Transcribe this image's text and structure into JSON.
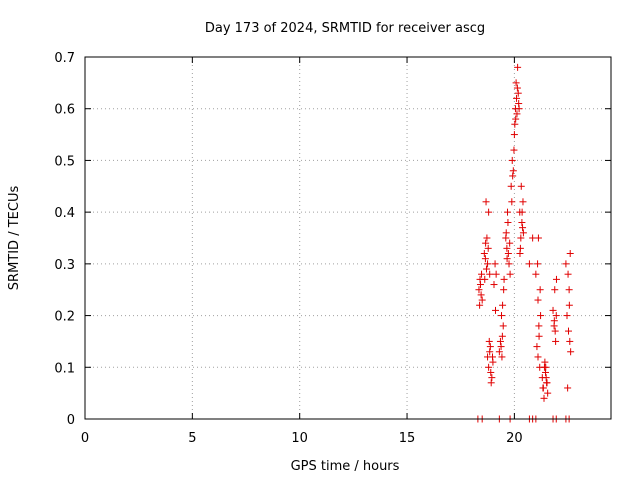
{
  "chart_data": {
    "type": "scatter",
    "title": "Day 173 of 2024, SRMTID for receiver ascg",
    "xlabel": "GPS time / hours",
    "ylabel": "SRMTID / TECUs",
    "xlim": [
      0,
      24.5
    ],
    "ylim": [
      0,
      0.7
    ],
    "xticks": [
      0,
      5,
      10,
      15,
      20
    ],
    "yticks": [
      0,
      0.1,
      0.2,
      0.3,
      0.4,
      0.5,
      0.6,
      0.7
    ],
    "grid": true,
    "marker": "+",
    "color": "#e00000",
    "series": [
      {
        "name": "SRMTID",
        "x": [
          18.35,
          18.4,
          18.45,
          18.5,
          18.42,
          18.47,
          18.38,
          18.6,
          18.65,
          18.7,
          18.75,
          18.8,
          18.68,
          18.72,
          18.78,
          18.85,
          18.62,
          18.66,
          18.75,
          18.8,
          18.85,
          18.9,
          18.95,
          19.0,
          18.88,
          18.92,
          18.98,
          18.83,
          19.1,
          19.15,
          19.05,
          19.12,
          19.3,
          19.35,
          19.4,
          19.45,
          19.38,
          19.42,
          19.5,
          19.48,
          19.44,
          19.52,
          19.6,
          19.65,
          19.7,
          19.75,
          19.62,
          19.68,
          19.72,
          19.8,
          19.78,
          19.66,
          19.85,
          19.9,
          19.95,
          20.0,
          19.88,
          19.92,
          19.98,
          20.02,
          20.05,
          20.1,
          20.15,
          20.2,
          20.08,
          20.12,
          20.18,
          20.06,
          20.14,
          20.22,
          20.25,
          20.3,
          20.35,
          20.4,
          20.28,
          20.32,
          20.38,
          20.26,
          20.36,
          20.42,
          20.7,
          20.85,
          21.0,
          21.05,
          21.1,
          21.15,
          21.2,
          21.08,
          21.12,
          21.18,
          21.22,
          21.14,
          21.1,
          21.3,
          21.35,
          21.4,
          21.45,
          21.5,
          21.55,
          21.38,
          21.42,
          21.48,
          21.33,
          21.46,
          21.52,
          21.8,
          21.85,
          21.9,
          21.95,
          21.88,
          21.92,
          21.86,
          21.96,
          22.4,
          22.5,
          22.55,
          22.6,
          22.45,
          22.52,
          22.58,
          22.48,
          22.62,
          22.56,
          18.3,
          18.5,
          19.3,
          19.8,
          20.7,
          20.85,
          21.0,
          21.8,
          21.95,
          22.4,
          22.55
        ],
        "y": [
          0.25,
          0.27,
          0.24,
          0.23,
          0.26,
          0.28,
          0.22,
          0.32,
          0.31,
          0.29,
          0.3,
          0.4,
          0.42,
          0.35,
          0.33,
          0.28,
          0.27,
          0.34,
          0.12,
          0.1,
          0.13,
          0.09,
          0.08,
          0.11,
          0.14,
          0.07,
          0.12,
          0.15,
          0.3,
          0.28,
          0.26,
          0.21,
          0.13,
          0.15,
          0.2,
          0.22,
          0.14,
          0.12,
          0.25,
          0.18,
          0.16,
          0.27,
          0.35,
          0.33,
          0.38,
          0.3,
          0.36,
          0.4,
          0.32,
          0.28,
          0.34,
          0.31,
          0.45,
          0.5,
          0.48,
          0.55,
          0.42,
          0.47,
          0.52,
          0.57,
          0.6,
          0.62,
          0.68,
          0.61,
          0.65,
          0.59,
          0.63,
          0.58,
          0.64,
          0.6,
          0.4,
          0.35,
          0.38,
          0.42,
          0.33,
          0.45,
          0.37,
          0.32,
          0.4,
          0.36,
          0.3,
          0.35,
          0.28,
          0.14,
          0.12,
          0.16,
          0.25,
          0.3,
          0.35,
          0.1,
          0.2,
          0.18,
          0.23,
          0.08,
          0.06,
          0.1,
          0.09,
          0.07,
          0.05,
          0.04,
          0.11,
          0.08,
          0.06,
          0.1,
          0.07,
          0.21,
          0.18,
          0.17,
          0.2,
          0.25,
          0.15,
          0.19,
          0.27,
          0.3,
          0.28,
          0.25,
          0.32,
          0.2,
          0.17,
          0.15,
          0.06,
          0.13,
          0.22,
          0.0,
          0.0,
          0.0,
          0.0,
          0.0,
          0.0,
          0.0,
          0.0,
          0.0,
          0.0,
          0.0
        ]
      }
    ]
  }
}
